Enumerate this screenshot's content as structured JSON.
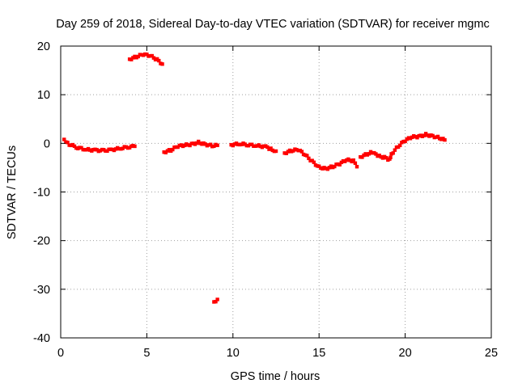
{
  "chart_data": {
    "type": "scatter",
    "title": "Day 259 of 2018, Sidereal Day-to-day VTEC variation (SDTVAR) for receiver mgmc",
    "xlabel": "GPS time / hours",
    "ylabel": "SDTVAR / TECUs",
    "xlim": [
      0,
      25
    ],
    "ylim": [
      -40,
      20
    ],
    "xticks": [
      "0",
      "5",
      "10",
      "15",
      "20",
      "25"
    ],
    "yticks": [
      "20",
      "10",
      "0",
      "-10",
      "-20",
      "-30",
      "-40"
    ],
    "grid": true,
    "marker_color": "#ff0000",
    "series": [
      {
        "name": "SDTVAR",
        "segments": [
          [
            [
              0.2,
              0.8
            ],
            [
              0.5,
              -0.2
            ],
            [
              1.0,
              -0.9
            ],
            [
              1.5,
              -1.3
            ],
            [
              2.0,
              -1.4
            ],
            [
              2.5,
              -1.5
            ],
            [
              3.0,
              -1.3
            ],
            [
              3.5,
              -1.0
            ],
            [
              4.0,
              -0.7
            ],
            [
              4.3,
              -0.6
            ]
          ],
          [
            [
              4.0,
              17.3
            ],
            [
              4.4,
              17.8
            ],
            [
              4.8,
              18.3
            ],
            [
              5.2,
              18.0
            ],
            [
              5.6,
              17.2
            ],
            [
              5.9,
              16.3
            ]
          ],
          [
            [
              6.0,
              -1.8
            ],
            [
              6.4,
              -1.4
            ],
            [
              6.8,
              -0.6
            ],
            [
              7.2,
              -0.4
            ],
            [
              7.6,
              -0.2
            ],
            [
              8.0,
              0.2
            ],
            [
              8.4,
              -0.2
            ],
            [
              8.8,
              -0.5
            ],
            [
              9.1,
              -0.4
            ]
          ],
          [
            [
              8.9,
              -32.6
            ],
            [
              9.1,
              -32.1
            ]
          ],
          [
            [
              9.9,
              -0.3
            ],
            [
              10.4,
              -0.1
            ],
            [
              10.9,
              -0.3
            ],
            [
              11.4,
              -0.5
            ],
            [
              11.9,
              -0.7
            ],
            [
              12.2,
              -1.2
            ],
            [
              12.5,
              -1.6
            ]
          ],
          [
            [
              13.0,
              -2.0
            ],
            [
              13.4,
              -1.5
            ],
            [
              13.8,
              -1.3
            ],
            [
              14.2,
              -2.4
            ],
            [
              14.6,
              -3.7
            ],
            [
              15.0,
              -4.9
            ],
            [
              15.4,
              -5.2
            ],
            [
              15.8,
              -4.8
            ],
            [
              16.2,
              -4.2
            ],
            [
              16.6,
              -3.4
            ],
            [
              17.0,
              -3.6
            ],
            [
              17.2,
              -4.8
            ]
          ],
          [
            [
              17.4,
              -2.8
            ],
            [
              17.8,
              -2.2
            ],
            [
              18.1,
              -1.8
            ],
            [
              18.4,
              -2.6
            ],
            [
              18.8,
              -2.9
            ],
            [
              19.1,
              -3.4
            ],
            [
              19.2,
              -2.2
            ],
            [
              19.6,
              -0.6
            ],
            [
              20.0,
              0.6
            ],
            [
              20.4,
              1.3
            ],
            [
              20.8,
              1.4
            ],
            [
              21.2,
              1.8
            ],
            [
              21.6,
              1.5
            ],
            [
              22.0,
              1.1
            ],
            [
              22.3,
              0.7
            ]
          ]
        ]
      }
    ]
  }
}
